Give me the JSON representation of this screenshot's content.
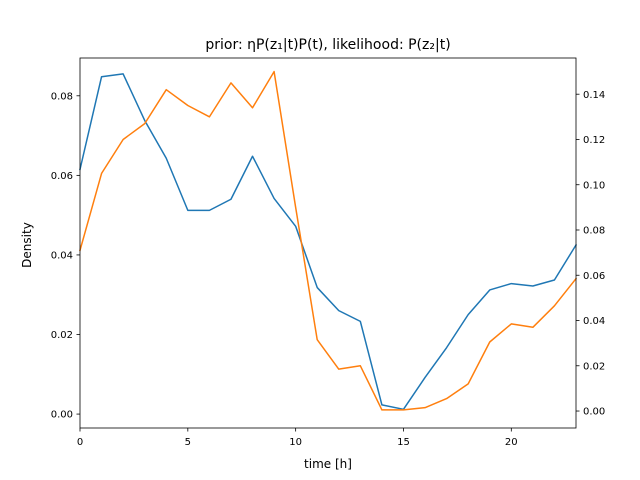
{
  "chart_data": {
    "type": "line",
    "title": "prior: ηP(z₁|t)P(t), likelihood: P(z₂|t)",
    "xlabel": "time [h]",
    "ylabel_left": "Density",
    "ylabel_right": "",
    "xlim": [
      0,
      23
    ],
    "ylim_left": [
      -0.0035,
      0.0895
    ],
    "ylim_right": [
      -0.0075,
      0.156
    ],
    "xticks": [
      0,
      5,
      10,
      15,
      20
    ],
    "yticks_left": [
      0.0,
      0.02,
      0.04,
      0.06,
      0.08
    ],
    "ytick_labels_left": [
      "0.00",
      "0.02",
      "0.04",
      "0.06",
      "0.08"
    ],
    "yticks_right": [
      0.0,
      0.02,
      0.04,
      0.06,
      0.08,
      0.1,
      0.12,
      0.14
    ],
    "ytick_labels_right": [
      "0.00",
      "0.02",
      "0.04",
      "0.06",
      "0.08",
      "0.10",
      "0.12",
      "0.14"
    ],
    "grid": false,
    "legend": "none",
    "x": [
      0,
      1,
      2,
      3,
      4,
      5,
      6,
      7,
      8,
      9,
      10,
      11,
      12,
      13,
      14,
      15,
      16,
      17,
      18,
      19,
      20,
      21,
      22,
      23
    ],
    "series": [
      {
        "axis": "left",
        "color": "#1f77b4",
        "values": [
          0.0615,
          0.0848,
          0.0855,
          0.0738,
          0.0643,
          0.0512,
          0.0512,
          0.054,
          0.0648,
          0.0542,
          0.0472,
          0.0318,
          0.026,
          0.0233,
          0.0023,
          0.0012,
          0.0092,
          0.0167,
          0.025,
          0.0312,
          0.0328,
          0.0322,
          0.0337,
          0.0425
        ]
      },
      {
        "axis": "right",
        "color": "#ff7f0e",
        "values": [
          0.071,
          0.105,
          0.12,
          0.127,
          0.142,
          0.135,
          0.13,
          0.145,
          0.134,
          0.15,
          0.09,
          0.0315,
          0.0185,
          0.02,
          0.0005,
          0.0005,
          0.0015,
          0.0055,
          0.012,
          0.0305,
          0.0385,
          0.037,
          0.0465,
          0.0585
        ]
      }
    ]
  }
}
